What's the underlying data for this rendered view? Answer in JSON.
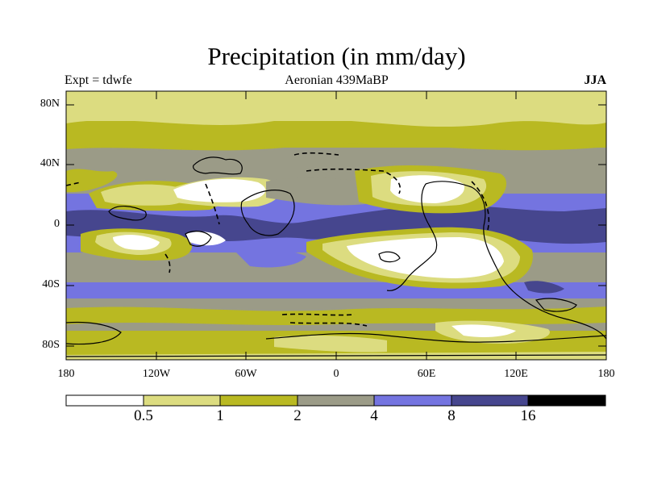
{
  "title": "Precipitation (in mm/day)",
  "experiment": "Expt = tdwfe",
  "subtitle": "Aeronian 439MaBP",
  "season": "JJA",
  "lat_ticks": [
    "80N",
    "40N",
    "0",
    "40S",
    "80S"
  ],
  "lon_ticks": [
    "180",
    "120W",
    "60W",
    "0",
    "60E",
    "120E",
    "180"
  ],
  "colorbar": {
    "thresholds": [
      "0.5",
      "1",
      "2",
      "4",
      "8",
      "16"
    ],
    "colors": [
      "#ffffff",
      "#dcdc80",
      "#b9b922",
      "#9b9b87",
      "#7474e0",
      "#46468e",
      "#000000"
    ]
  }
}
